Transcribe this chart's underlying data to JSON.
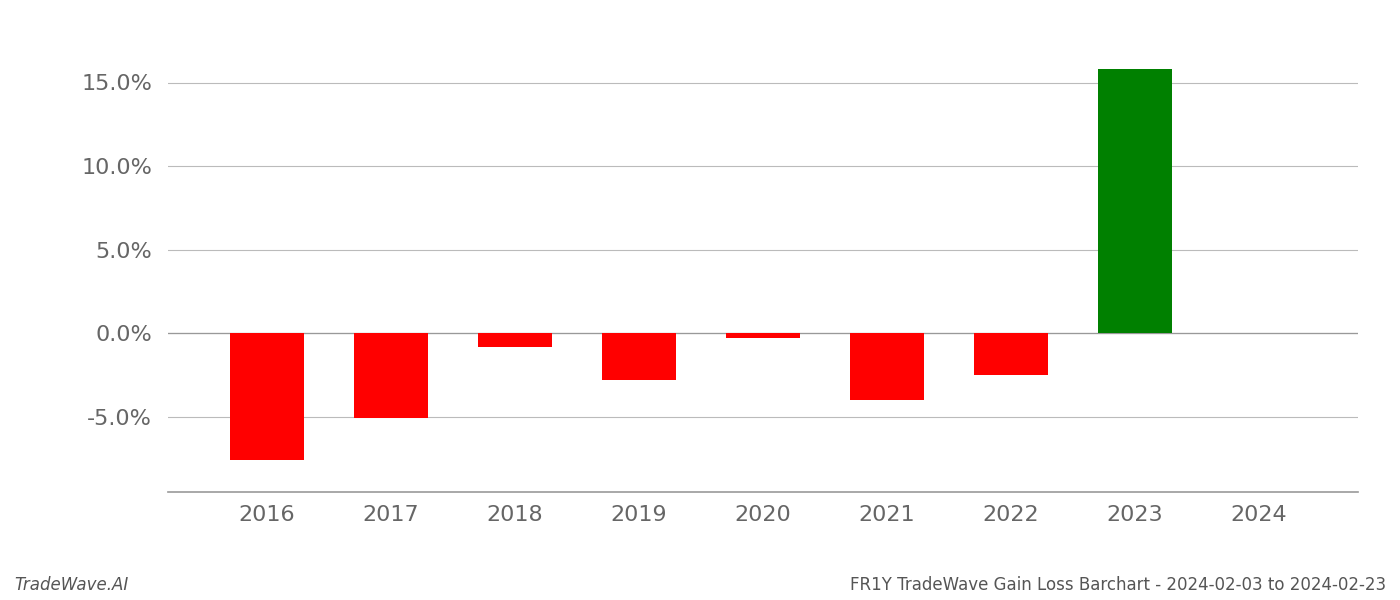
{
  "years": [
    2016,
    2017,
    2018,
    2019,
    2020,
    2021,
    2022,
    2023
  ],
  "values": [
    -0.076,
    -0.051,
    -0.008,
    -0.028,
    -0.003,
    -0.04,
    -0.025,
    0.158
  ],
  "colors": [
    "#ff0000",
    "#ff0000",
    "#ff0000",
    "#ff0000",
    "#ff0000",
    "#ff0000",
    "#ff0000",
    "#008000"
  ],
  "footer_left": "TradeWave.AI",
  "footer_right": "FR1Y TradeWave Gain Loss Barchart - 2024-02-03 to 2024-02-23",
  "background_color": "#ffffff",
  "grid_color": "#bbbbbb",
  "ylim_min": -0.095,
  "ylim_max": 0.185,
  "xlim_min": 2015.2,
  "xlim_max": 2024.8,
  "bar_width": 0.6,
  "yticks": [
    -0.05,
    0.0,
    0.05,
    0.1,
    0.15
  ],
  "xticks": [
    2016,
    2017,
    2018,
    2019,
    2020,
    2021,
    2022,
    2023,
    2024
  ],
  "ytick_fontsize": 16,
  "xtick_fontsize": 16,
  "footer_fontsize": 12
}
